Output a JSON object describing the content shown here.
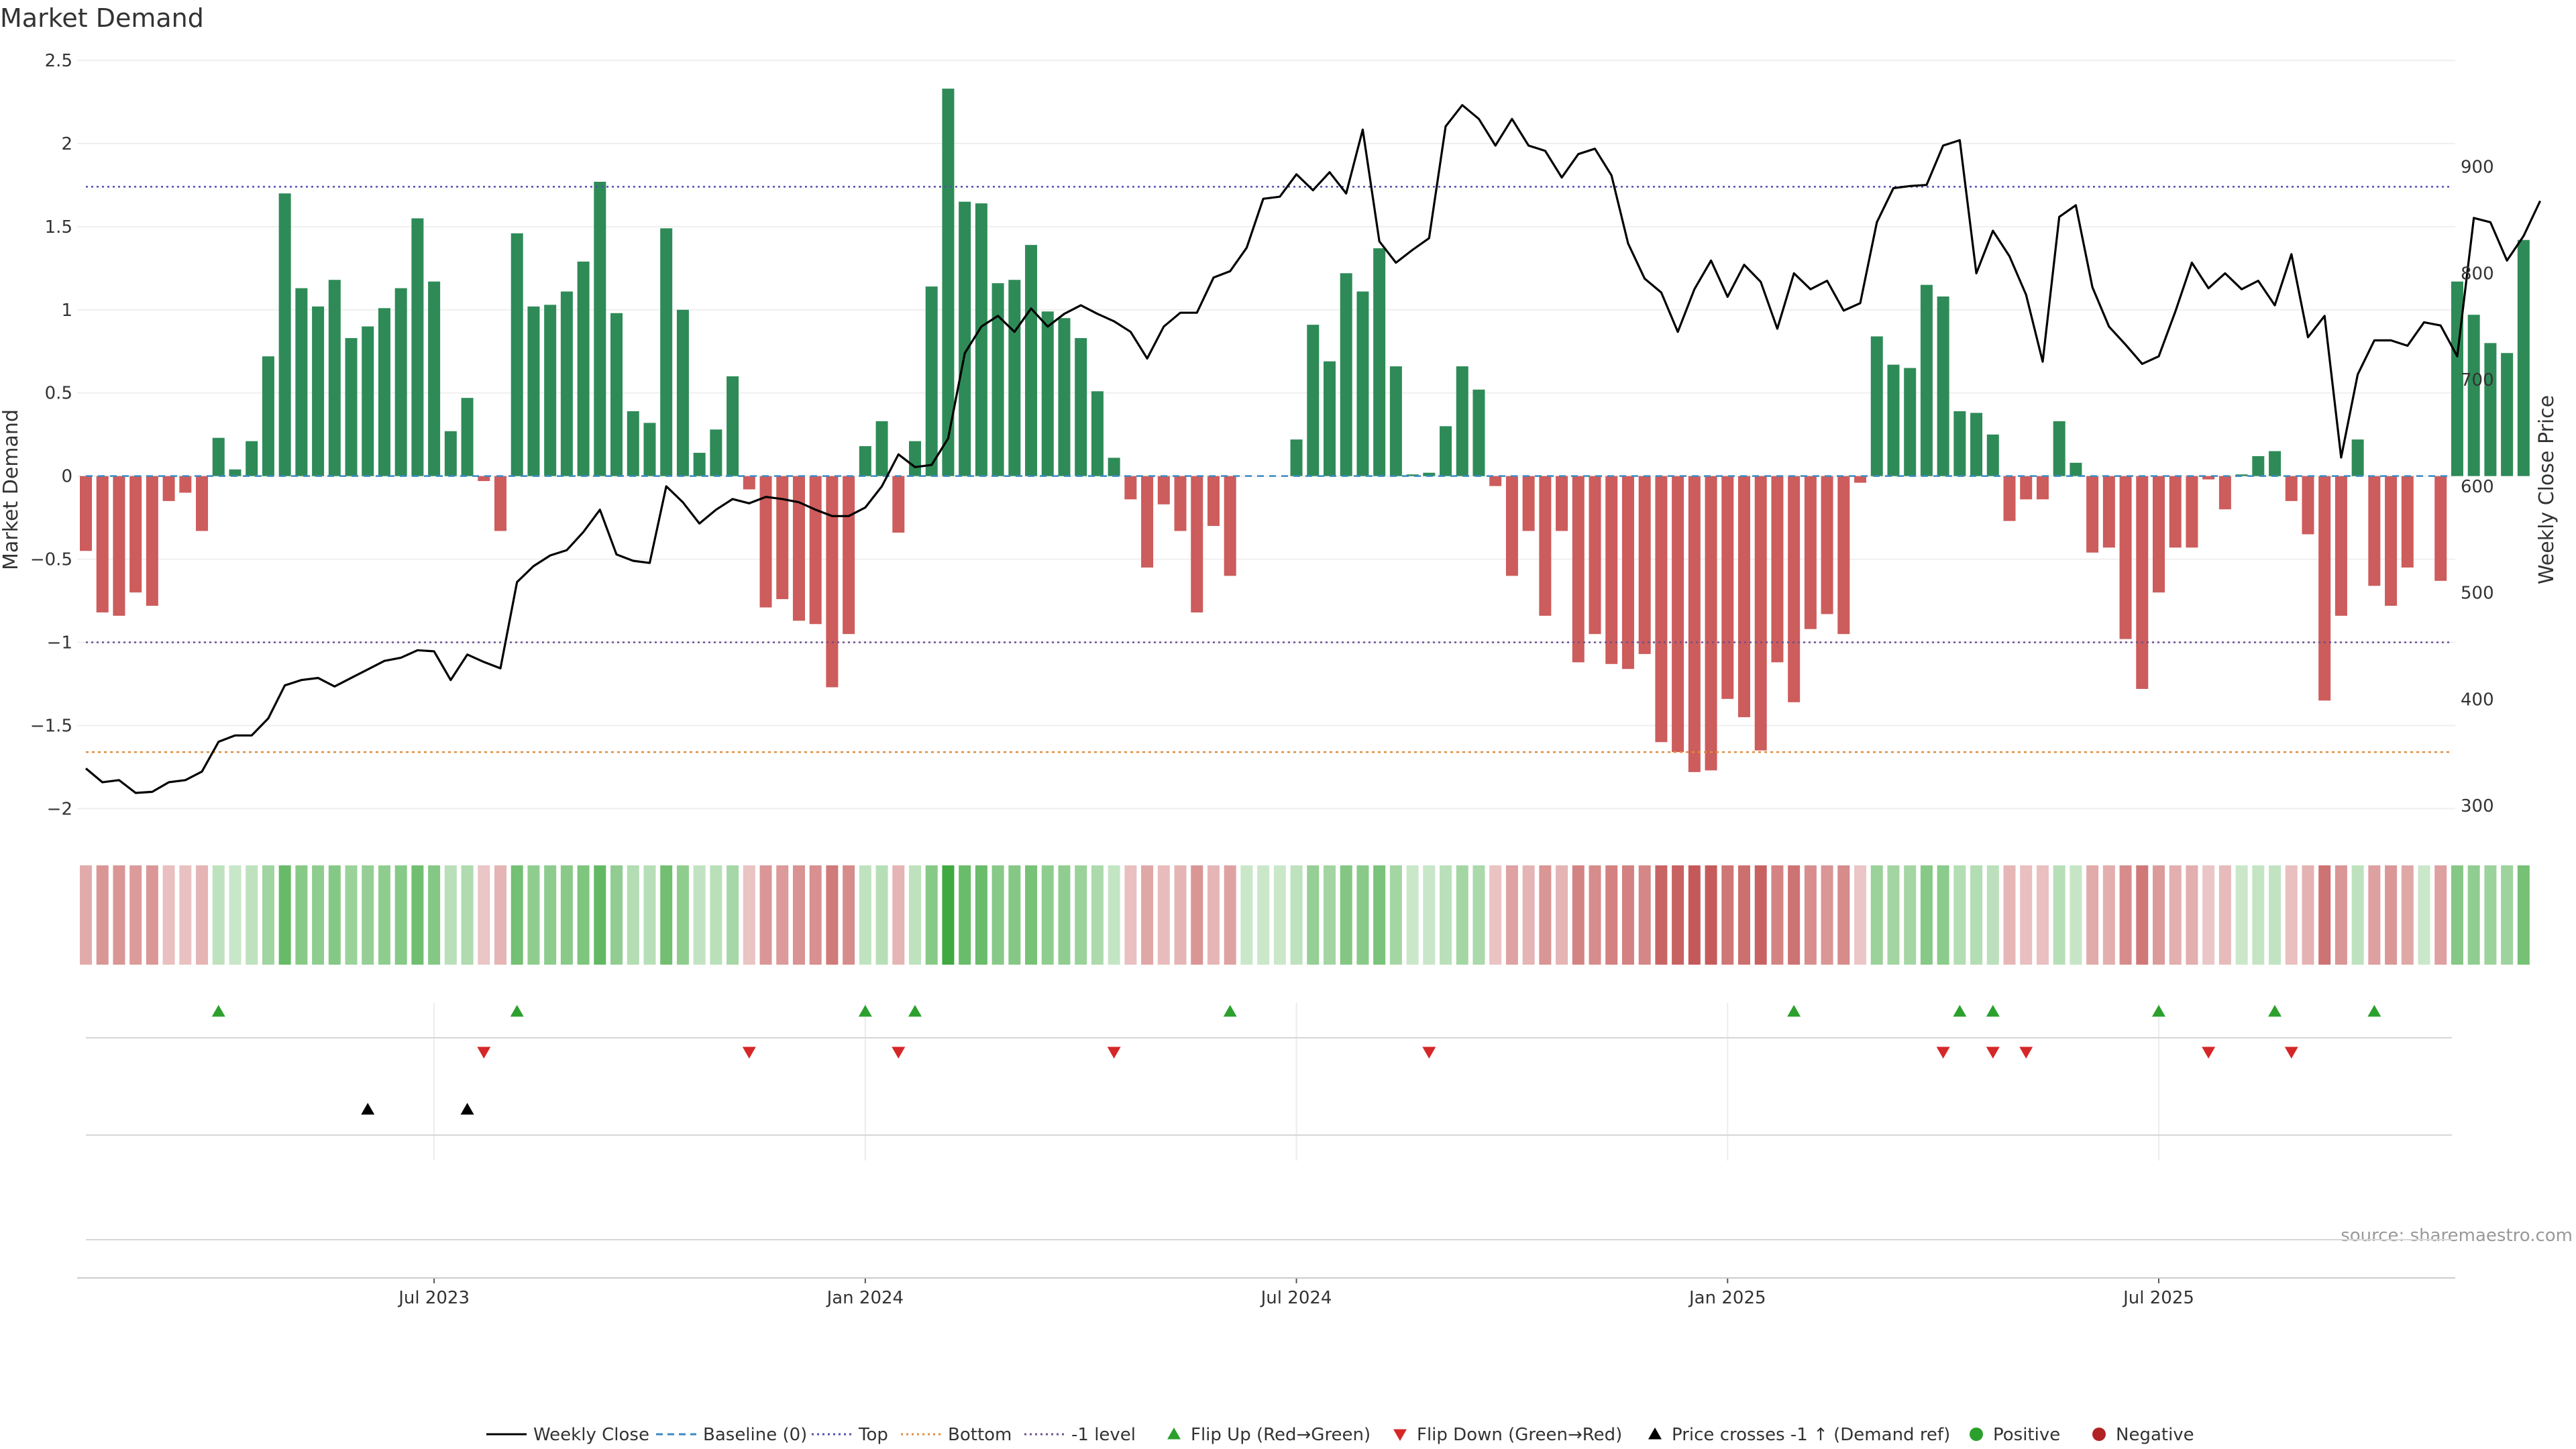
{
  "chart_data": {
    "type": "bar",
    "title": "Market Demand",
    "ylabel_left": "Market Demand",
    "ylabel_right": "Weekly Close Price",
    "source_text": "source: sharemaestro.com",
    "y_left_range": [
      -2.2,
      2.5
    ],
    "y_left_ticks": [
      2.5,
      2,
      1.5,
      1,
      0.5,
      0,
      -0.5,
      -1,
      -1.5,
      -2
    ],
    "y_left_tick_labels": [
      "2.5",
      "2",
      "1.5",
      "1",
      "0.5",
      "0",
      "−0.5",
      "−1",
      "−1.5",
      "−2"
    ],
    "y_right_range": [
      266,
      1000
    ],
    "y_right_ticks": [
      900,
      800,
      700,
      600,
      500,
      400,
      300
    ],
    "y_right_tick_labels": [
      "900",
      "800",
      "700",
      "600",
      "500",
      "400",
      "300"
    ],
    "x_tick_labels": [
      "Jul 2023",
      "Jan 2024",
      "Jul 2024",
      "Jan 2025",
      "Jul 2025"
    ],
    "x_tick_weeks": [
      21,
      47,
      73,
      99,
      125
    ],
    "levels": {
      "top": 1.74,
      "bottom": -1.66,
      "minus_one": -1.0,
      "baseline": 0
    },
    "colors": {
      "positive": "#2e8b57",
      "negative": "#cd5c5c",
      "price": "#000000",
      "top": "#5050b0",
      "bottom": "#e08c3c",
      "minus_one": "#6a5090",
      "baseline": "#3a8ac0",
      "flip_up": "#2ca02c",
      "flip_down": "#d62728",
      "price_cross": "#000000",
      "dot_positive": "#2ca02c",
      "dot_negative": "#b22222"
    },
    "series": [
      {
        "name": "Market Demand",
        "values": [
          -0.45,
          -0.82,
          -0.84,
          -0.7,
          -0.78,
          -0.15,
          -0.1,
          -0.33,
          0.23,
          0.04,
          0.21,
          0.72,
          1.7,
          1.13,
          1.02,
          1.18,
          0.83,
          0.9,
          1.01,
          1.13,
          1.55,
          1.17,
          0.27,
          0.47,
          -0.03,
          -0.33,
          1.46,
          1.02,
          1.03,
          1.11,
          1.29,
          1.77,
          0.98,
          0.39,
          0.32,
          1.49,
          1.0,
          0.14,
          0.28,
          0.6,
          -0.08,
          -0.79,
          -0.74,
          -0.87,
          -0.89,
          -1.27,
          -0.95,
          0.18,
          0.33,
          -0.34,
          0.21,
          1.14,
          2.33,
          1.65,
          1.64,
          1.16,
          1.18,
          1.39,
          0.99,
          0.95,
          0.83,
          0.51,
          0.11,
          -0.14,
          -0.55,
          -0.17,
          -0.33,
          -0.82,
          -0.3,
          -0.6,
          0.0,
          0.0,
          0.0,
          0.22,
          0.91,
          0.69,
          1.22,
          1.11,
          1.37,
          0.66,
          0.01,
          0.02,
          0.3,
          0.66,
          0.52,
          -0.06,
          -0.6,
          -0.33,
          -0.84,
          -0.33,
          -1.12,
          -0.95,
          -1.13,
          -1.16,
          -1.07,
          -1.6,
          -1.66,
          -1.78,
          -1.77,
          -1.34,
          -1.45,
          -1.65,
          -1.12,
          -1.36,
          -0.92,
          -0.83,
          -0.95,
          -0.04,
          0.84,
          0.67,
          0.65,
          1.15,
          1.08,
          0.39,
          0.38,
          0.25,
          -0.27,
          -0.14,
          -0.14,
          0.33,
          0.08,
          -0.46,
          -0.43,
          -0.98,
          -1.28,
          -0.7,
          -0.43,
          -0.43,
          -0.02,
          -0.2,
          0.01,
          0.12,
          0.15,
          -0.15,
          -0.35,
          -1.35,
          -0.84,
          0.22,
          -0.66,
          -0.78,
          -0.55,
          0.0,
          -0.63,
          1.17,
          0.97,
          0.8,
          0.74,
          1.42
        ]
      },
      {
        "name": "Weekly Close",
        "values": [
          335,
          322,
          324,
          312,
          313,
          322,
          324,
          332,
          360,
          366,
          366,
          382,
          413,
          418,
          420,
          412,
          420,
          428,
          436,
          439,
          446,
          445,
          418,
          442,
          435,
          429,
          510,
          525,
          535,
          540,
          557,
          578,
          536,
          530,
          528,
          600,
          585,
          565,
          578,
          588,
          584,
          590,
          588,
          585,
          578,
          572,
          572,
          580,
          600,
          630,
          618,
          620,
          645,
          725,
          750,
          760,
          745,
          767,
          750,
          762,
          770,
          762,
          755,
          745,
          720,
          750,
          763,
          763,
          796,
          802,
          824,
          870,
          872,
          893,
          878,
          895,
          875,
          935,
          830,
          810,
          822,
          833,
          938,
          958,
          945,
          920,
          945,
          920,
          915,
          890,
          912,
          917,
          892,
          828,
          795,
          782,
          745,
          785,
          812,
          778,
          808,
          792,
          748,
          800,
          785,
          793,
          765,
          772,
          848,
          880,
          882,
          883,
          920,
          925,
          800,
          840,
          816,
          780,
          717,
          853,
          864,
          787,
          750,
          733,
          715,
          722,
          764,
          810,
          786,
          800,
          785,
          793,
          770,
          818,
          740,
          760,
          627,
          705,
          737,
          737,
          732,
          754,
          751,
          722,
          852,
          848,
          812,
          835,
          868
        ]
      }
    ],
    "flip_up_weeks": [
      8,
      26,
      47,
      50,
      69,
      103,
      113,
      115,
      125,
      132,
      138
    ],
    "flip_down_weeks": [
      24,
      40,
      49,
      62,
      81,
      112,
      115,
      117,
      128,
      133
    ],
    "price_cross_weeks": [
      17,
      23
    ],
    "legend": [
      {
        "label": "Weekly Close",
        "kind": "line-solid",
        "color": "#000000"
      },
      {
        "label": "Baseline (0)",
        "kind": "line-dash",
        "color": "#3a8ac0"
      },
      {
        "label": "Top",
        "kind": "line-dot",
        "color": "#5050b0"
      },
      {
        "label": "Bottom",
        "kind": "line-dot",
        "color": "#e08c3c"
      },
      {
        "label": "-1 level",
        "kind": "line-dot",
        "color": "#6a5090"
      },
      {
        "label": "Flip Up (Red→Green)",
        "kind": "tri-up",
        "color": "#2ca02c"
      },
      {
        "label": "Flip Down (Green→Red)",
        "kind": "tri-down",
        "color": "#d62728"
      },
      {
        "label": "Price crosses -1 ↑ (Demand ref)",
        "kind": "tri-up",
        "color": "#000000"
      },
      {
        "label": "Positive",
        "kind": "dot",
        "color": "#2ca02c"
      },
      {
        "label": "Negative",
        "kind": "dot",
        "color": "#b22222"
      }
    ]
  }
}
